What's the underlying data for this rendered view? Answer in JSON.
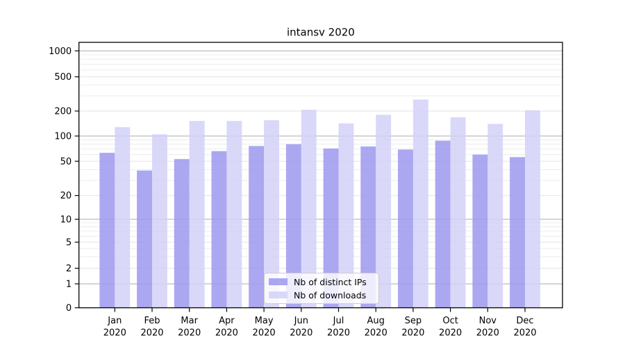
{
  "chart_data": {
    "type": "bar",
    "title": "intansv 2020",
    "categories": [
      "Jan",
      "Feb",
      "Mar",
      "Apr",
      "May",
      "Jun",
      "Jul",
      "Aug",
      "Sep",
      "Oct",
      "Nov",
      "Dec"
    ],
    "year_label": "2020",
    "series": [
      {
        "name": "Nb of distinct IPs",
        "color": "#9c98ef",
        "values": [
          63,
          39,
          53,
          66,
          76,
          80,
          71,
          75,
          69,
          88,
          60,
          56
        ]
      },
      {
        "name": "Nb of downloads",
        "color": "#d4d1f8",
        "values": [
          128,
          105,
          152,
          152,
          155,
          207,
          142,
          180,
          272,
          168,
          140,
          204
        ]
      }
    ],
    "y_ticks": [
      0,
      1,
      2,
      5,
      10,
      20,
      50,
      100,
      200,
      500,
      1000
    ],
    "ylim": [
      0,
      1250
    ],
    "scale": "log-like with 0 baseline",
    "grid": "on",
    "legend_position": "bottom-center-inside",
    "colors": {
      "grid_minor": "#ececec",
      "grid_major": "#e3e3e3",
      "grid_power10": "#ababab",
      "axis": "#000000",
      "legend_border": "#cccccc",
      "background": "#ffffff"
    }
  }
}
